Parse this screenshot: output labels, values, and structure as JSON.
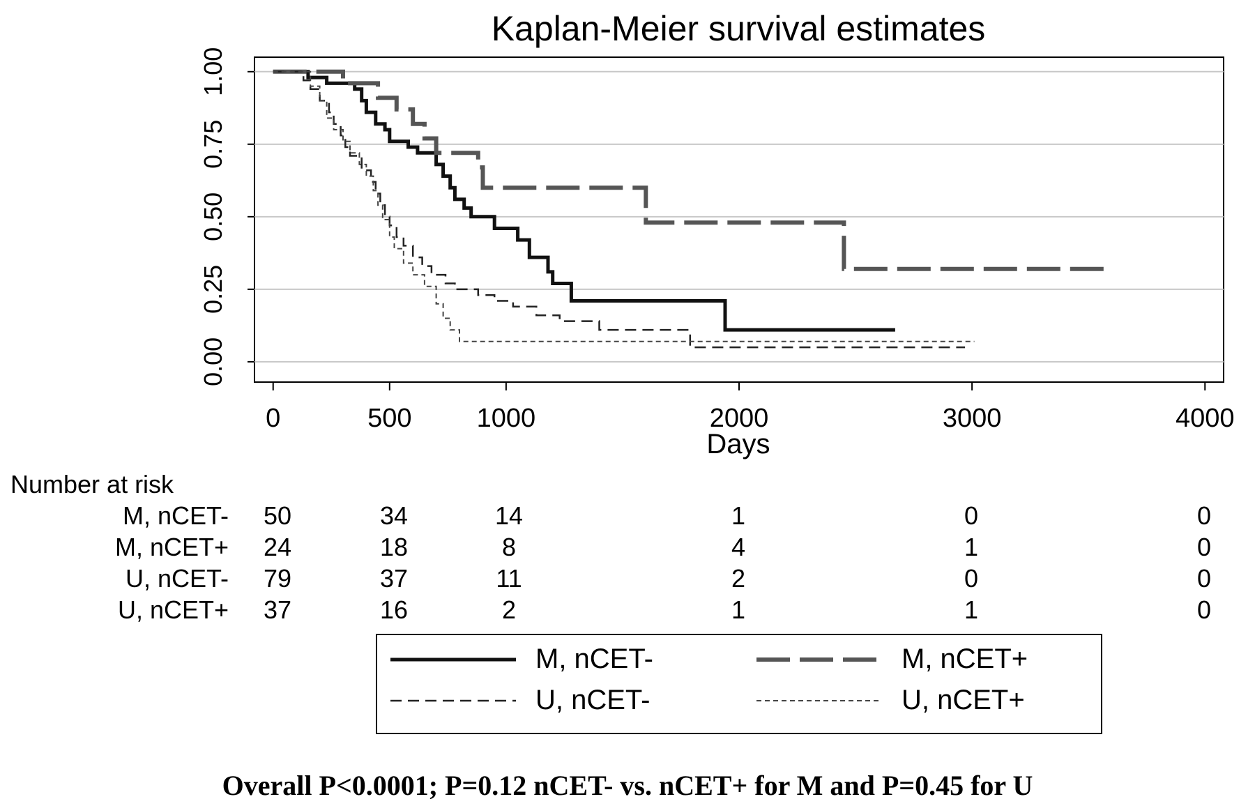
{
  "chart_data": {
    "type": "line",
    "title": "Kaplan-Meier survival estimates",
    "xlabel": "Days",
    "ylabel": "",
    "xlim": [
      -80,
      4080
    ],
    "ylim": [
      -0.07,
      1.05
    ],
    "x_ticks": [
      0,
      500,
      1000,
      2000,
      3000,
      4000
    ],
    "x_tick_labels": [
      "0",
      "500",
      "1000",
      "2000",
      "3000",
      "4000"
    ],
    "y_ticks": [
      0,
      0.25,
      0.5,
      0.75,
      1
    ],
    "y_tick_labels": [
      "0.00",
      "0.25",
      "0.50",
      "0.75",
      "1.00"
    ],
    "grid": "horizontal",
    "legend_position": "bottom",
    "series": [
      {
        "name": "M, nCET-",
        "color": "#111111",
        "style": "solid",
        "points": [
          [
            0,
            1.0
          ],
          [
            150,
            1.0
          ],
          [
            150,
            0.98
          ],
          [
            230,
            0.98
          ],
          [
            230,
            0.96
          ],
          [
            350,
            0.96
          ],
          [
            350,
            0.94
          ],
          [
            380,
            0.94
          ],
          [
            380,
            0.9
          ],
          [
            400,
            0.9
          ],
          [
            400,
            0.86
          ],
          [
            440,
            0.86
          ],
          [
            440,
            0.82
          ],
          [
            480,
            0.82
          ],
          [
            480,
            0.8
          ],
          [
            500,
            0.8
          ],
          [
            500,
            0.76
          ],
          [
            580,
            0.76
          ],
          [
            580,
            0.74
          ],
          [
            620,
            0.74
          ],
          [
            620,
            0.72
          ],
          [
            700,
            0.72
          ],
          [
            700,
            0.68
          ],
          [
            730,
            0.68
          ],
          [
            730,
            0.64
          ],
          [
            760,
            0.64
          ],
          [
            760,
            0.6
          ],
          [
            780,
            0.6
          ],
          [
            780,
            0.56
          ],
          [
            820,
            0.56
          ],
          [
            820,
            0.53
          ],
          [
            850,
            0.53
          ],
          [
            850,
            0.5
          ],
          [
            950,
            0.5
          ],
          [
            950,
            0.46
          ],
          [
            1050,
            0.46
          ],
          [
            1050,
            0.42
          ],
          [
            1100,
            0.42
          ],
          [
            1100,
            0.36
          ],
          [
            1180,
            0.36
          ],
          [
            1180,
            0.31
          ],
          [
            1200,
            0.31
          ],
          [
            1200,
            0.27
          ],
          [
            1280,
            0.27
          ],
          [
            1280,
            0.21
          ],
          [
            1940,
            0.21
          ],
          [
            1940,
            0.11
          ],
          [
            2670,
            0.11
          ]
        ]
      },
      {
        "name": "M, nCET+",
        "color": "#555555",
        "style": "long-dash",
        "points": [
          [
            0,
            1.0
          ],
          [
            300,
            1.0
          ],
          [
            300,
            0.96
          ],
          [
            450,
            0.96
          ],
          [
            450,
            0.91
          ],
          [
            530,
            0.91
          ],
          [
            530,
            0.87
          ],
          [
            600,
            0.87
          ],
          [
            600,
            0.82
          ],
          [
            650,
            0.82
          ],
          [
            650,
            0.77
          ],
          [
            700,
            0.77
          ],
          [
            700,
            0.72
          ],
          [
            880,
            0.72
          ],
          [
            880,
            0.67
          ],
          [
            900,
            0.67
          ],
          [
            900,
            0.6
          ],
          [
            1600,
            0.6
          ],
          [
            1600,
            0.48
          ],
          [
            2450,
            0.48
          ],
          [
            2450,
            0.32
          ],
          [
            3580,
            0.32
          ]
        ]
      },
      {
        "name": "U, nCET-",
        "color": "#222222",
        "style": "dash",
        "points": [
          [
            0,
            1.0
          ],
          [
            130,
            1.0
          ],
          [
            130,
            0.97
          ],
          [
            160,
            0.97
          ],
          [
            160,
            0.94
          ],
          [
            200,
            0.94
          ],
          [
            200,
            0.9
          ],
          [
            240,
            0.9
          ],
          [
            240,
            0.86
          ],
          [
            260,
            0.86
          ],
          [
            260,
            0.82
          ],
          [
            290,
            0.82
          ],
          [
            290,
            0.78
          ],
          [
            310,
            0.78
          ],
          [
            310,
            0.74
          ],
          [
            330,
            0.74
          ],
          [
            330,
            0.71
          ],
          [
            380,
            0.71
          ],
          [
            380,
            0.66
          ],
          [
            420,
            0.66
          ],
          [
            420,
            0.62
          ],
          [
            440,
            0.62
          ],
          [
            440,
            0.58
          ],
          [
            460,
            0.58
          ],
          [
            460,
            0.54
          ],
          [
            480,
            0.54
          ],
          [
            480,
            0.5
          ],
          [
            500,
            0.5
          ],
          [
            500,
            0.47
          ],
          [
            530,
            0.47
          ],
          [
            530,
            0.43
          ],
          [
            560,
            0.43
          ],
          [
            560,
            0.4
          ],
          [
            600,
            0.4
          ],
          [
            600,
            0.36
          ],
          [
            640,
            0.36
          ],
          [
            640,
            0.33
          ],
          [
            680,
            0.33
          ],
          [
            680,
            0.3
          ],
          [
            740,
            0.3
          ],
          [
            740,
            0.27
          ],
          [
            780,
            0.27
          ],
          [
            780,
            0.25
          ],
          [
            880,
            0.25
          ],
          [
            880,
            0.23
          ],
          [
            950,
            0.23
          ],
          [
            950,
            0.21
          ],
          [
            1030,
            0.21
          ],
          [
            1030,
            0.19
          ],
          [
            1130,
            0.19
          ],
          [
            1130,
            0.16
          ],
          [
            1230,
            0.16
          ],
          [
            1230,
            0.14
          ],
          [
            1400,
            0.14
          ],
          [
            1400,
            0.11
          ],
          [
            1790,
            0.11
          ],
          [
            1790,
            0.05
          ],
          [
            2970,
            0.05
          ]
        ]
      },
      {
        "name": "U, nCET+",
        "color": "#444444",
        "style": "short-dash",
        "points": [
          [
            0,
            1.0
          ],
          [
            160,
            1.0
          ],
          [
            160,
            0.95
          ],
          [
            200,
            0.95
          ],
          [
            200,
            0.9
          ],
          [
            230,
            0.9
          ],
          [
            230,
            0.84
          ],
          [
            260,
            0.84
          ],
          [
            260,
            0.8
          ],
          [
            300,
            0.8
          ],
          [
            300,
            0.76
          ],
          [
            330,
            0.76
          ],
          [
            330,
            0.72
          ],
          [
            370,
            0.72
          ],
          [
            370,
            0.68
          ],
          [
            400,
            0.68
          ],
          [
            400,
            0.64
          ],
          [
            430,
            0.64
          ],
          [
            430,
            0.59
          ],
          [
            450,
            0.59
          ],
          [
            450,
            0.54
          ],
          [
            470,
            0.54
          ],
          [
            470,
            0.49
          ],
          [
            500,
            0.49
          ],
          [
            500,
            0.43
          ],
          [
            520,
            0.43
          ],
          [
            520,
            0.39
          ],
          [
            560,
            0.39
          ],
          [
            560,
            0.34
          ],
          [
            600,
            0.34
          ],
          [
            600,
            0.3
          ],
          [
            650,
            0.3
          ],
          [
            650,
            0.26
          ],
          [
            700,
            0.26
          ],
          [
            700,
            0.2
          ],
          [
            730,
            0.2
          ],
          [
            730,
            0.15
          ],
          [
            760,
            0.15
          ],
          [
            760,
            0.11
          ],
          [
            800,
            0.11
          ],
          [
            800,
            0.07
          ],
          [
            3010,
            0.07
          ]
        ]
      }
    ]
  },
  "risk_table": {
    "header": "Number at risk",
    "rows": [
      {
        "label": "M, nCET-",
        "values": [
          "50",
          "34",
          "14",
          "1",
          "0",
          "0"
        ]
      },
      {
        "label": "M, nCET+",
        "values": [
          "24",
          "18",
          "8",
          "4",
          "1",
          "0"
        ]
      },
      {
        "label": "U, nCET-",
        "values": [
          "79",
          "37",
          "11",
          "2",
          "0",
          "0"
        ]
      },
      {
        "label": "U, nCET+",
        "values": [
          "37",
          "16",
          "2",
          "1",
          "1",
          "0"
        ]
      }
    ]
  },
  "footnote": "Overall P<0.0001; P=0.12 nCET- vs. nCET+ for M and P=0.45 for U"
}
